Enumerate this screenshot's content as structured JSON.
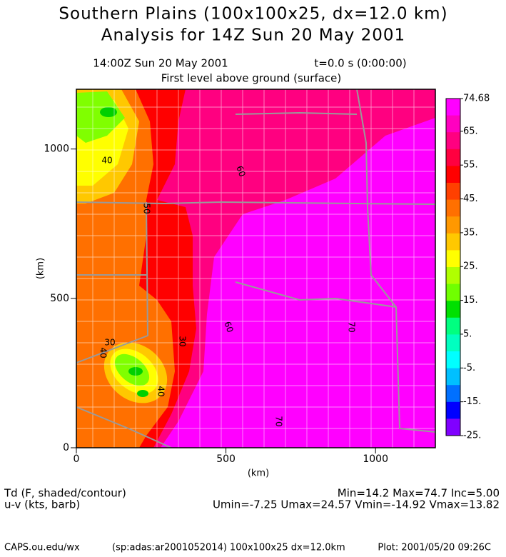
{
  "header": {
    "title": "Southern Plains (100x100x25, dx=12.0 km)",
    "subtitle": "Analysis for 14Z Sun 20 May 2001",
    "time": "14:00Z Sun 20 May 2001",
    "model_time": "t=0.0 s (0:00:00)",
    "level": "First level above ground (surface)"
  },
  "axes": {
    "xlabel": "(km)",
    "ylabel": "(km)",
    "xlim": [
      0,
      1200
    ],
    "ylim": [
      0,
      1200
    ],
    "xticks": [
      0,
      500,
      1000
    ],
    "yticks": [
      0,
      500,
      1000
    ]
  },
  "colorbar": {
    "ticks": [
      {
        "value": 74.68,
        "label": "74.68"
      },
      {
        "value": 65,
        "label": "65."
      },
      {
        "value": 55,
        "label": "55."
      },
      {
        "value": 45,
        "label": "45."
      },
      {
        "value": 35,
        "label": "35."
      },
      {
        "value": 25,
        "label": "25."
      },
      {
        "value": 15,
        "label": "15."
      },
      {
        "value": 5,
        "label": "5."
      },
      {
        "value": -5,
        "label": "-5."
      },
      {
        "value": -15,
        "label": "-15."
      },
      {
        "value": -25,
        "label": "-25."
      }
    ],
    "colors": [
      "#ff00ff",
      "#ff00c0",
      "#ff0080",
      "#ff0040",
      "#ff0000",
      "#ff4000",
      "#ff7000",
      "#ff9800",
      "#ffc800",
      "#ffff00",
      "#b0ff00",
      "#70ff00",
      "#00e000",
      "#00ff80",
      "#00ffc0",
      "#00ffff",
      "#00c0ff",
      "#0070ff",
      "#0000ff",
      "#8000ff"
    ]
  },
  "contour_labels": [
    40,
    50,
    60,
    30,
    40,
    40,
    30,
    60,
    70,
    70
  ],
  "footer": {
    "field": "Td (F, shaded/contour)",
    "vector": "u-v (kts, barb)",
    "stats": "Min=14.2 Max=74.7 Inc=5.00",
    "wind_stats": "Umin=-7.25 Umax=24.57 Vmin=-14.92 Vmax=13.82",
    "site": "CAPS.ou.edu/wx",
    "run": "(sp:adas:ar2001052014) 100x100x25 dx=12.0km",
    "plot": "Plot: 2001/05/20 09:26C"
  }
}
